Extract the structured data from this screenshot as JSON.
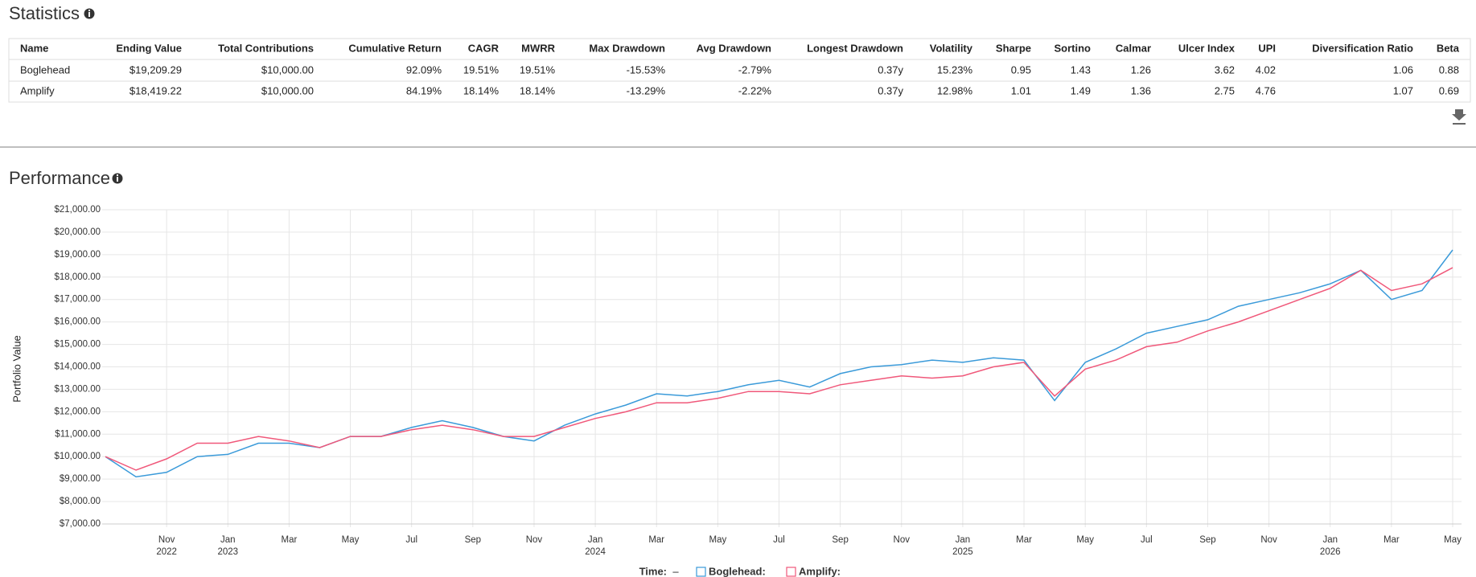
{
  "statistics": {
    "title": "Statistics",
    "columns": [
      "Name",
      "Ending Value",
      "Total Contributions",
      "Cumulative Return",
      "CAGR",
      "MWRR",
      "Max Drawdown",
      "Avg Drawdown",
      "Longest Drawdown",
      "Volatility",
      "Sharpe",
      "Sortino",
      "Calmar",
      "Ulcer Index",
      "UPI",
      "Diversification Ratio",
      "Beta"
    ],
    "rows": [
      [
        "Boglehead",
        "$19,209.29",
        "$10,000.00",
        "92.09%",
        "19.51%",
        "19.51%",
        "-15.53%",
        "-2.79%",
        "0.37y",
        "15.23%",
        "0.95",
        "1.43",
        "1.26",
        "3.62",
        "4.02",
        "1.06",
        "0.88"
      ],
      [
        "Amplify",
        "$18,419.22",
        "$10,000.00",
        "84.19%",
        "18.14%",
        "18.14%",
        "-13.29%",
        "-2.22%",
        "0.37y",
        "12.98%",
        "1.01",
        "1.49",
        "1.36",
        "2.75",
        "4.76",
        "1.07",
        "0.69"
      ]
    ]
  },
  "chart_data": {
    "type": "line",
    "title": "Performance",
    "ylabel": "Portfolio Value",
    "x": [
      "2022-09",
      "2022-10",
      "2022-11",
      "2022-12",
      "2023-01",
      "2023-02",
      "2023-03",
      "2023-04",
      "2023-05",
      "2023-06",
      "2023-07",
      "2023-08",
      "2023-09",
      "2023-10",
      "2023-11",
      "2023-12",
      "2024-01",
      "2024-02",
      "2024-03",
      "2024-04",
      "2024-05",
      "2024-06",
      "2024-07",
      "2024-08",
      "2024-09",
      "2024-10",
      "2024-11",
      "2024-12",
      "2025-01",
      "2025-02",
      "2025-03",
      "2025-04",
      "2025-05",
      "2025-06",
      "2025-07",
      "2025-08",
      "2025-09",
      "2025-10",
      "2025-11",
      "2025-12",
      "2026-01",
      "2026-02",
      "2026-03",
      "2026-04",
      "2026-05"
    ],
    "series": [
      {
        "name": "Boglehead",
        "color": "#3a9ad9",
        "values": [
          10000,
          9100,
          9300,
          10000,
          10100,
          10600,
          10600,
          10400,
          10900,
          10900,
          11300,
          11600,
          11300,
          10900,
          10700,
          11400,
          11900,
          12300,
          12800,
          12700,
          12900,
          13200,
          13400,
          13100,
          13700,
          14000,
          14100,
          14300,
          14200,
          14400,
          14300,
          12500,
          14200,
          14800,
          15500,
          15800,
          16100,
          16700,
          17000,
          17300,
          17700,
          18300,
          17000,
          17400,
          19209.29
        ]
      },
      {
        "name": "Amplify",
        "color": "#f0587a",
        "values": [
          10000,
          9400,
          9900,
          10600,
          10600,
          10900,
          10700,
          10400,
          10900,
          10900,
          11200,
          11400,
          11200,
          10900,
          10900,
          11300,
          11700,
          12000,
          12400,
          12400,
          12600,
          12900,
          12900,
          12800,
          13200,
          13400,
          13600,
          13500,
          13600,
          14000,
          14200,
          12700,
          13900,
          14300,
          14900,
          15100,
          15600,
          16000,
          16500,
          17000,
          17500,
          18300,
          17400,
          17700,
          18419.22
        ]
      }
    ],
    "xlim": [
      "2022-09",
      "2026-05"
    ],
    "xticks": [
      {
        "value": "2022-11",
        "label": "Nov"
      },
      {
        "value": "2023-01",
        "label": "Jan"
      },
      {
        "value": "2023-03",
        "label": "Mar"
      },
      {
        "value": "2023-05",
        "label": "May"
      },
      {
        "value": "2023-07",
        "label": "Jul"
      },
      {
        "value": "2023-09",
        "label": "Sep"
      },
      {
        "value": "2023-11",
        "label": "Nov"
      },
      {
        "value": "2024-01",
        "label": "Jan"
      },
      {
        "value": "2024-03",
        "label": "Mar"
      },
      {
        "value": "2024-05",
        "label": "May"
      },
      {
        "value": "2024-07",
        "label": "Jul"
      },
      {
        "value": "2024-09",
        "label": "Sep"
      },
      {
        "value": "2024-11",
        "label": "Nov"
      },
      {
        "value": "2025-01",
        "label": "Jan"
      },
      {
        "value": "2025-03",
        "label": "Mar"
      },
      {
        "value": "2025-05",
        "label": "May"
      },
      {
        "value": "2025-07",
        "label": "Jul"
      },
      {
        "value": "2025-09",
        "label": "Sep"
      },
      {
        "value": "2025-11",
        "label": "Nov"
      },
      {
        "value": "2026-01",
        "label": "Jan"
      },
      {
        "value": "2026-03",
        "label": "Mar"
      },
      {
        "value": "2026-05",
        "label": "May"
      }
    ],
    "xtick_years": [
      {
        "value": "2022-11",
        "label": "2022"
      },
      {
        "value": "2023-01",
        "label": "2023"
      },
      {
        "value": "2024-01",
        "label": "2024"
      },
      {
        "value": "2025-01",
        "label": "2025"
      },
      {
        "value": "2026-01",
        "label": "2026"
      }
    ],
    "ylim": [
      7000,
      21000
    ],
    "yticks": [
      {
        "value": 7000,
        "label": "$7,000.00"
      },
      {
        "value": 8000,
        "label": "$8,000.00"
      },
      {
        "value": 9000,
        "label": "$9,000.00"
      },
      {
        "value": 10000,
        "label": "$10,000.00"
      },
      {
        "value": 11000,
        "label": "$11,000.00"
      },
      {
        "value": 12000,
        "label": "$12,000.00"
      },
      {
        "value": 13000,
        "label": "$13,000.00"
      },
      {
        "value": 14000,
        "label": "$14,000.00"
      },
      {
        "value": 15000,
        "label": "$15,000.00"
      },
      {
        "value": 16000,
        "label": "$16,000.00"
      },
      {
        "value": 17000,
        "label": "$17,000.00"
      },
      {
        "value": 18000,
        "label": "$18,000.00"
      },
      {
        "value": 19000,
        "label": "$19,000.00"
      },
      {
        "value": 20000,
        "label": "$20,000.00"
      },
      {
        "value": 21000,
        "label": "$21,000.00"
      }
    ],
    "grid": true,
    "legend": {
      "title": "Time:",
      "time_value": "–",
      "items": [
        "Boglehead:",
        "Amplify:"
      ]
    }
  }
}
